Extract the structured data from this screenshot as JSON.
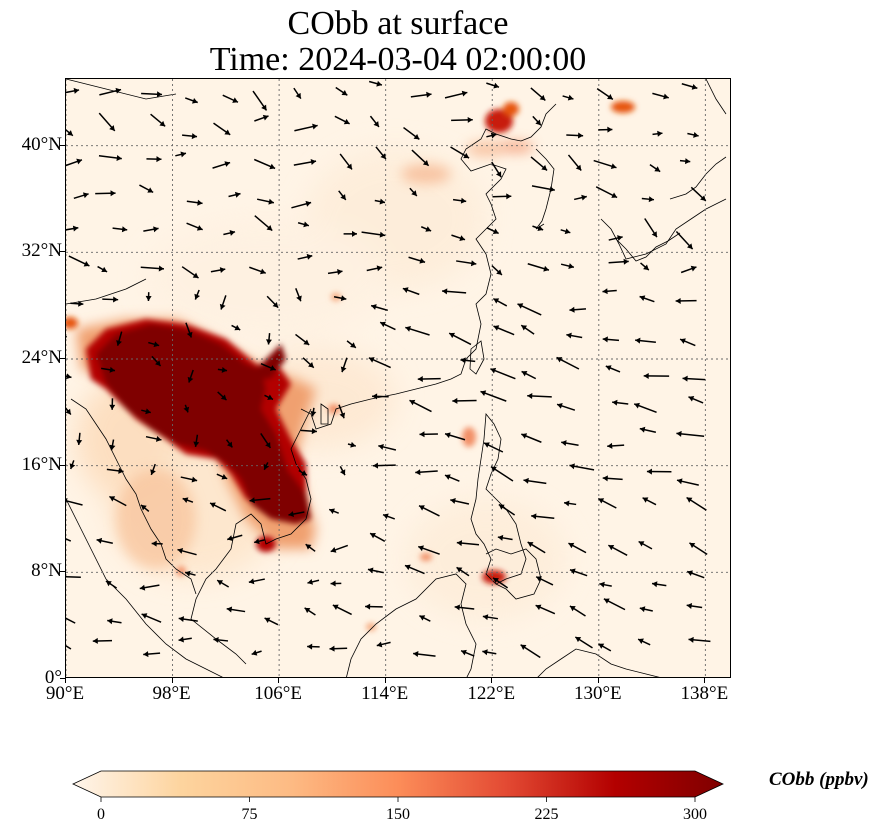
{
  "title_line1": "CObb at surface",
  "title_line2": "Time: 2024-03-04 02:00:00",
  "map": {
    "lon_range": [
      90,
      140
    ],
    "lat_range": [
      0,
      45
    ],
    "lon_ticks": [
      {
        "value": 90,
        "label": "90°E"
      },
      {
        "value": 98,
        "label": "98°E"
      },
      {
        "value": 106,
        "label": "106°E"
      },
      {
        "value": 114,
        "label": "114°E"
      },
      {
        "value": 122,
        "label": "122°E"
      },
      {
        "value": 130,
        "label": "130°E"
      },
      {
        "value": 138,
        "label": "138°E"
      }
    ],
    "lat_ticks": [
      {
        "value": 40,
        "label": "40°N"
      },
      {
        "value": 32,
        "label": "32°N"
      },
      {
        "value": 24,
        "label": "24°N"
      },
      {
        "value": 16,
        "label": "16°N"
      },
      {
        "value": 8,
        "label": "8°N"
      },
      {
        "value": 0,
        "label": "0°"
      }
    ],
    "gridlines": "dotted",
    "background_color": "#fff4e6",
    "coastline_color": "#000000",
    "wind_vectors": "black arrows",
    "plumes": [
      {
        "region": "Myanmar / Laos / Thailand",
        "lon": 101,
        "lat": 20,
        "level": 300
      },
      {
        "region": "Northern Laos",
        "lon": 104,
        "lat": 18,
        "level": 300
      },
      {
        "region": "Cambodia",
        "lon": 107,
        "lat": 13,
        "level": 290
      },
      {
        "region": "NE China",
        "lon": 121.5,
        "lat": 42,
        "level": 230
      },
      {
        "region": "Philippines (Mindanao)",
        "lon": 123,
        "lat": 7.8,
        "level": 210
      },
      {
        "region": "Luzon",
        "lon": 120.5,
        "lat": 18,
        "level": 140
      },
      {
        "region": "Russia Far East",
        "lon": 131,
        "lat": 43,
        "level": 160
      },
      {
        "region": "North China Plain",
        "lon": 116,
        "lat": 38,
        "level": 90
      },
      {
        "region": "Borneo NW",
        "lon": 114,
        "lat": 4,
        "level": 70
      }
    ]
  },
  "colorbar": {
    "label": "CObb (ppbv)",
    "min": 0,
    "max": 300,
    "ticks": [
      {
        "value": 0,
        "label": "0"
      },
      {
        "value": 75,
        "label": "75"
      },
      {
        "value": 150,
        "label": "150"
      },
      {
        "value": 225,
        "label": "225"
      },
      {
        "value": 300,
        "label": "300"
      }
    ],
    "colors": [
      "#fff5eb",
      "#fdd49e",
      "#fdbb84",
      "#fc8d59",
      "#e34a33",
      "#b30000",
      "#7f0000"
    ],
    "extend": "both"
  }
}
